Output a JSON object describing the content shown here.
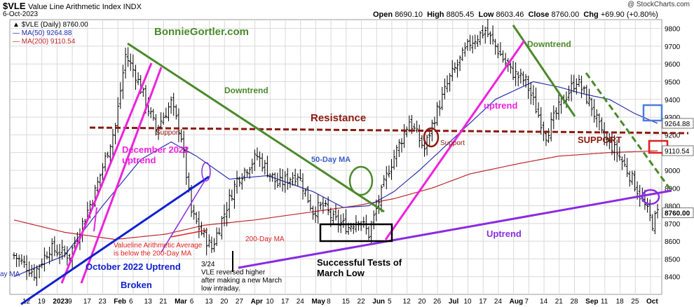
{
  "header": {
    "symbol": "$VLE",
    "description": "Value Line Arithmetic Index  INDX",
    "date": "6-Oct-2023",
    "credit": "@ StockCharts.com",
    "open_label": "Open",
    "open": "8690.10",
    "high_label": "High",
    "high": "8805.45",
    "low_label": "Low",
    "low": "8603.46",
    "close_label": "Close",
    "close": "8760.00",
    "chg_label": "Chg",
    "chg": "+69.90 (+0.80%)"
  },
  "legend": [
    {
      "label": "$VLE (Daily) 8760.00",
      "color": "#000000"
    },
    {
      "label": "MA(50) 9264.88",
      "color": "#1f2aa8"
    },
    {
      "label": "MA(200) 9110.54",
      "color": "#c0262c"
    }
  ],
  "colors": {
    "ma50": "#2a33b0",
    "ma200": "#c0262c",
    "price": "#000000",
    "green": "#4a8a2a",
    "magenta": "#ee22dd",
    "blue": "#1020d0",
    "purple": "#8a2be2",
    "maroon": "#8b1a10",
    "grid": "#d9d9d9"
  },
  "annotations": {
    "site": "BonnieGortler.com",
    "downtrend_1": "Downtrend",
    "downtrend_2": "Downtrend",
    "resistance": "Resistance",
    "support_1": "Support",
    "support_2": "Support",
    "support_3": "SUPPORT",
    "dec_uptrend": "December 2022\nuptrend",
    "ma50_label": "50-Day MA",
    "ma200_label": "200-Day MA",
    "uptrend_1": "uptrend",
    "uptrend_2": "Uptrend",
    "oct_uptrend": "October 2022 Uptrend",
    "broken": "Broken",
    "vla_note": "Valueline Arithmetic Average\nis below the 200-Day MA",
    "march_low": "Successful Tests of\nMarch Low",
    "vle_note": "3/24\nVLE reversed higher\nafter making a new March\nlow intraday.",
    "left_ma": "ay MA"
  },
  "chart_data": {
    "type": "ohlc",
    "title": "$VLE Value Line Arithmetic Index INDX",
    "ylim": [
      8300,
      9850
    ],
    "y_ticks": [
      8400,
      8500,
      8600,
      8700,
      8800,
      8900,
      9000,
      9100,
      9200,
      9300,
      9400,
      9500,
      9600,
      9700,
      9800
    ],
    "x_ticks": [
      "12",
      "19",
      "2023",
      "9",
      "17",
      "23",
      "Feb",
      "6",
      "13",
      "21",
      "Mar",
      "6",
      "13",
      "20",
      "27",
      "Apr",
      "10",
      "17",
      "24",
      "May",
      "8",
      "15",
      "22",
      "Jun",
      "5",
      "12",
      "20",
      "26",
      "Jul",
      "10",
      "17",
      "24",
      "Aug",
      "7",
      "14",
      "21",
      "28",
      "Sep",
      "11",
      "18",
      "25",
      "Oct"
    ],
    "price_tags": [
      {
        "label": "9264.88",
        "value": 9264.88
      },
      {
        "label": "9110.54",
        "value": 9110.54
      },
      {
        "label": "8760.00",
        "value": 8760.0
      }
    ],
    "closes_anchor": [
      [
        0,
        8520
      ],
      [
        8,
        8420
      ],
      [
        14,
        8560
      ],
      [
        22,
        8520
      ],
      [
        32,
        8880
      ],
      [
        40,
        9250
      ],
      [
        44,
        9650
      ],
      [
        48,
        9540
      ],
      [
        56,
        9230
      ],
      [
        62,
        9380
      ],
      [
        66,
        9190
      ],
      [
        70,
        8760
      ],
      [
        74,
        8650
      ],
      [
        78,
        8560
      ],
      [
        82,
        8720
      ],
      [
        88,
        8950
      ],
      [
        96,
        9080
      ],
      [
        104,
        8920
      ],
      [
        112,
        8980
      ],
      [
        118,
        8770
      ],
      [
        122,
        8800
      ],
      [
        126,
        8720
      ],
      [
        132,
        8680
      ],
      [
        136,
        8730
      ],
      [
        140,
        8640
      ],
      [
        148,
        9010
      ],
      [
        156,
        9280
      ],
      [
        162,
        9120
      ],
      [
        166,
        9300
      ],
      [
        172,
        9520
      ],
      [
        180,
        9720
      ],
      [
        186,
        9790
      ],
      [
        190,
        9700
      ],
      [
        196,
        9560
      ],
      [
        202,
        9500
      ],
      [
        210,
        9200
      ],
      [
        216,
        9380
      ],
      [
        222,
        9510
      ],
      [
        228,
        9360
      ],
      [
        232,
        9200
      ],
      [
        238,
        9100
      ],
      [
        244,
        8950
      ],
      [
        248,
        8830
      ],
      [
        252,
        8700
      ],
      [
        254,
        8760
      ]
    ],
    "ma50_anchor": [
      [
        0,
        8400
      ],
      [
        20,
        8520
      ],
      [
        35,
        8800
      ],
      [
        50,
        9060
      ],
      [
        62,
        9160
      ],
      [
        72,
        9080
      ],
      [
        85,
        8950
      ],
      [
        100,
        8970
      ],
      [
        118,
        8880
      ],
      [
        130,
        8790
      ],
      [
        140,
        8800
      ],
      [
        150,
        8880
      ],
      [
        160,
        9000
      ],
      [
        175,
        9200
      ],
      [
        190,
        9400
      ],
      [
        205,
        9500
      ],
      [
        215,
        9470
      ],
      [
        225,
        9430
      ],
      [
        235,
        9400
      ],
      [
        245,
        9320
      ],
      [
        254,
        9265
      ]
    ],
    "ma200_anchor": [
      [
        0,
        8720
      ],
      [
        20,
        8650
      ],
      [
        40,
        8610
      ],
      [
        60,
        8640
      ],
      [
        75,
        8690
      ],
      [
        95,
        8720
      ],
      [
        115,
        8760
      ],
      [
        135,
        8800
      ],
      [
        150,
        8840
      ],
      [
        165,
        8900
      ],
      [
        180,
        8980
      ],
      [
        200,
        9040
      ],
      [
        215,
        9080
      ],
      [
        235,
        9100
      ],
      [
        254,
        9110
      ]
    ],
    "days": 255
  }
}
